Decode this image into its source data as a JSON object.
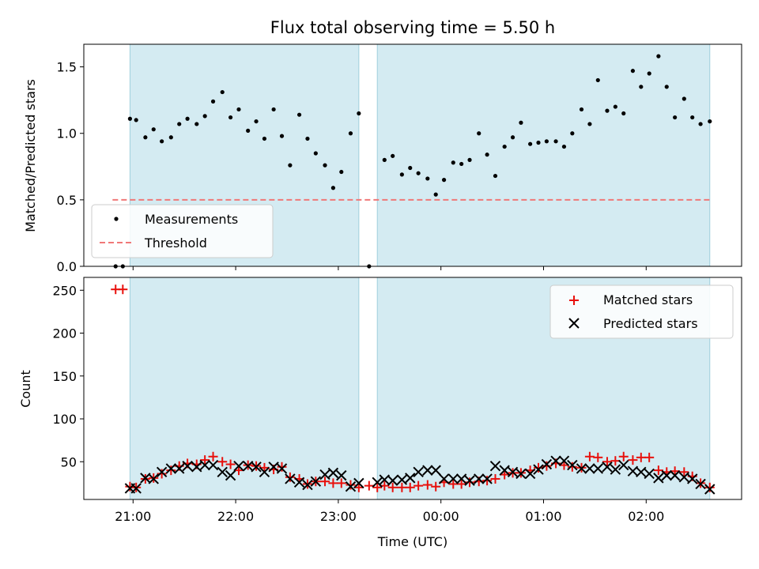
{
  "chart_data": [
    {
      "type": "scatter",
      "title": "Flux total observing time = 5.50 h",
      "ylabel": "Matched/Predicted stars",
      "ylim": [
        0,
        1.67
      ],
      "yticks": [
        0.0,
        0.5,
        1.0,
        1.5
      ],
      "ytick_labels": [
        "0.0",
        "0.5",
        "1.0",
        "1.5"
      ],
      "xlim_hours": [
        20.52,
        26.93
      ],
      "legend_position": "lower-left",
      "shaded_intervals_hours": [
        [
          20.97,
          23.2
        ],
        [
          23.38,
          26.62
        ]
      ],
      "threshold": {
        "name": "Threshold",
        "value": 0.5,
        "x_from_hours": 20.8,
        "x_to_hours": 26.62,
        "color": "#f07878"
      },
      "series": [
        {
          "name": "Measurements",
          "color": "#000000",
          "x_hours": [
            20.83,
            20.9,
            20.97,
            21.03,
            21.12,
            21.2,
            21.28,
            21.37,
            21.45,
            21.53,
            21.62,
            21.7,
            21.78,
            21.87,
            21.95,
            22.03,
            22.12,
            22.2,
            22.28,
            22.37,
            22.45,
            22.53,
            22.62,
            22.7,
            22.78,
            22.87,
            22.95,
            23.03,
            23.12,
            23.2,
            23.3,
            23.45,
            23.53,
            23.62,
            23.7,
            23.78,
            23.87,
            23.95,
            24.03,
            24.12,
            24.2,
            24.28,
            24.37,
            24.45,
            24.53,
            24.62,
            24.7,
            24.78,
            24.87,
            24.95,
            25.03,
            25.12,
            25.2,
            25.28,
            25.37,
            25.45,
            25.53,
            25.62,
            25.7,
            25.78,
            25.87,
            25.95,
            26.03,
            26.12,
            26.2,
            26.28,
            26.37,
            26.45,
            26.53,
            26.62
          ],
          "values": [
            0.0,
            0.0,
            1.11,
            1.1,
            0.97,
            1.03,
            0.94,
            0.97,
            1.07,
            1.11,
            1.07,
            1.13,
            1.24,
            1.31,
            1.12,
            1.18,
            1.02,
            1.09,
            0.96,
            1.18,
            0.98,
            0.76,
            1.14,
            0.96,
            0.85,
            0.76,
            0.59,
            0.71,
            1.0,
            1.15,
            0.0,
            0.8,
            0.83,
            0.69,
            0.74,
            0.7,
            0.66,
            0.54,
            0.65,
            0.78,
            0.77,
            0.8,
            1.0,
            0.84,
            0.68,
            0.9,
            0.97,
            1.08,
            0.92,
            0.93,
            0.94,
            0.94,
            0.9,
            1.0,
            1.18,
            1.07,
            1.4,
            1.17,
            1.2,
            1.15,
            1.47,
            1.35,
            1.45,
            1.58,
            1.35,
            1.12,
            1.26,
            1.12,
            1.07,
            1.09
          ]
        }
      ]
    },
    {
      "type": "scatter",
      "ylabel": "Count",
      "xlabel": "Time (UTC)",
      "ylim": [
        6,
        265
      ],
      "yticks": [
        50,
        100,
        150,
        200,
        250
      ],
      "ytick_labels": [
        "50",
        "100",
        "150",
        "200",
        "250"
      ],
      "xlim_hours": [
        20.52,
        26.93
      ],
      "xticks_hours": [
        21,
        22,
        23,
        24,
        25,
        26
      ],
      "xtick_labels": [
        "21:00",
        "22:00",
        "23:00",
        "00:00",
        "01:00",
        "02:00"
      ],
      "legend_position": "upper-right",
      "shaded_intervals_hours": [
        [
          20.97,
          23.2
        ],
        [
          23.38,
          26.62
        ]
      ],
      "series": [
        {
          "name": "Matched stars",
          "marker": "+",
          "color": "#e8100c",
          "x_hours": [
            20.83,
            20.9,
            20.97,
            21.03,
            21.12,
            21.2,
            21.28,
            21.37,
            21.45,
            21.53,
            21.62,
            21.7,
            21.78,
            21.87,
            21.95,
            22.03,
            22.12,
            22.2,
            22.28,
            22.37,
            22.45,
            22.53,
            22.62,
            22.7,
            22.78,
            22.87,
            22.95,
            23.03,
            23.12,
            23.2,
            23.3,
            23.38,
            23.45,
            23.53,
            23.62,
            23.7,
            23.78,
            23.87,
            23.95,
            24.03,
            24.12,
            24.2,
            24.28,
            24.37,
            24.45,
            24.53,
            24.62,
            24.7,
            24.78,
            24.87,
            24.95,
            25.03,
            25.12,
            25.2,
            25.28,
            25.37,
            25.45,
            25.53,
            25.62,
            25.7,
            25.78,
            25.87,
            25.95,
            26.03,
            26.12,
            26.2,
            26.28,
            26.37,
            26.45,
            26.53,
            26.62
          ],
          "values": [
            251,
            251,
            21,
            20,
            30,
            31,
            36,
            40,
            45,
            48,
            47,
            52,
            56,
            50,
            47,
            40,
            46,
            45,
            43,
            41,
            44,
            32,
            30,
            24,
            27,
            27,
            25,
            25,
            23,
            20,
            22,
            20,
            22,
            20,
            20,
            20,
            22,
            23,
            21,
            26,
            24,
            24,
            26,
            27,
            28,
            30,
            35,
            37,
            37,
            40,
            43,
            45,
            48,
            46,
            44,
            43,
            56,
            55,
            50,
            51,
            56,
            52,
            55,
            55,
            40,
            38,
            39,
            38,
            33,
            25,
            20
          ]
        },
        {
          "name": "Predicted stars",
          "marker": "x",
          "color": "#000000",
          "x_hours": [
            20.97,
            21.03,
            21.12,
            21.2,
            21.28,
            21.37,
            21.45,
            21.53,
            21.62,
            21.7,
            21.78,
            21.87,
            21.95,
            22.03,
            22.12,
            22.2,
            22.28,
            22.37,
            22.45,
            22.53,
            22.62,
            22.7,
            22.78,
            22.87,
            22.95,
            23.03,
            23.12,
            23.2,
            23.38,
            23.45,
            23.53,
            23.62,
            23.7,
            23.78,
            23.87,
            23.95,
            24.03,
            24.12,
            24.2,
            24.28,
            24.37,
            24.45,
            24.53,
            24.62,
            24.7,
            24.78,
            24.87,
            24.95,
            25.03,
            25.12,
            25.2,
            25.28,
            25.37,
            25.45,
            25.53,
            25.62,
            25.7,
            25.78,
            25.87,
            25.95,
            26.03,
            26.12,
            26.2,
            26.28,
            26.37,
            26.45,
            26.53,
            26.62
          ],
          "values": [
            19,
            19,
            31,
            30,
            38,
            42,
            42,
            45,
            44,
            46,
            46,
            38,
            34,
            45,
            45,
            44,
            38,
            44,
            42,
            30,
            26,
            23,
            27,
            35,
            37,
            34,
            21,
            25,
            26,
            29,
            28,
            29,
            31,
            38,
            40,
            40,
            30,
            30,
            30,
            28,
            30,
            30,
            45,
            40,
            38,
            36,
            36,
            41,
            47,
            51,
            51,
            46,
            42,
            42,
            42,
            44,
            41,
            46,
            39,
            38,
            36,
            31,
            34,
            34,
            32,
            30,
            24,
            18
          ]
        }
      ]
    }
  ]
}
